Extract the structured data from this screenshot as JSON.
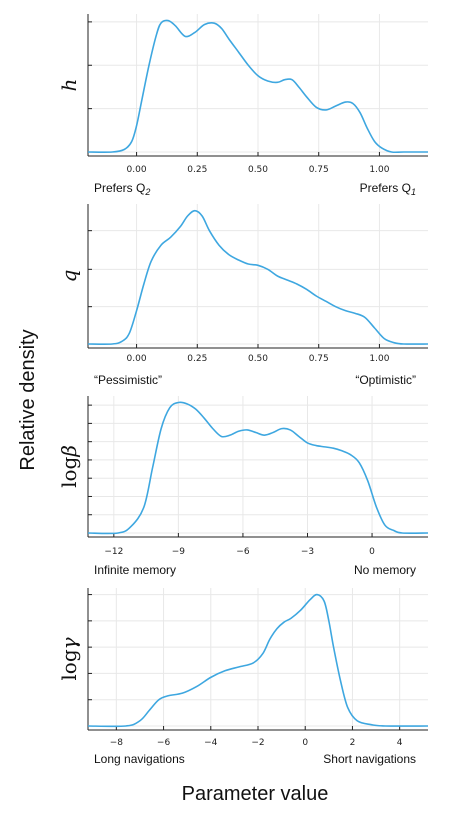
{
  "figure": {
    "ylabel": "Relative density",
    "xlabel": "Parameter value",
    "line_color": "#3ea7e0",
    "axis_color": "#222222",
    "grid_color": "#e8e8e8"
  },
  "chart_data": [
    {
      "type": "line",
      "ylabel_main": "h",
      "ylabel_prefix": "",
      "xlim": [
        -0.2,
        1.2
      ],
      "xticks": [
        0.0,
        0.25,
        0.5,
        0.75,
        1.0
      ],
      "xtick_labels": [
        "0.00",
        "0.25",
        "0.50",
        "0.75",
        "1.00"
      ],
      "ylim": [
        0,
        1.05
      ],
      "yticks": [
        0.0,
        0.33,
        0.66,
        0.99
      ],
      "left_label": "Prefers Q",
      "left_sub": "2",
      "right_label": "Prefers Q",
      "right_sub": "1",
      "grid": true,
      "series": [
        {
          "x": [
            -0.2,
            -0.1,
            -0.05,
            -0.02,
            0.0,
            0.02,
            0.05,
            0.08,
            0.1,
            0.13,
            0.16,
            0.2,
            0.24,
            0.28,
            0.32,
            0.35,
            0.38,
            0.42,
            0.46,
            0.5,
            0.54,
            0.58,
            0.61,
            0.64,
            0.67,
            0.7,
            0.74,
            0.78,
            0.82,
            0.86,
            0.89,
            0.92,
            0.95,
            0.98,
            1.01,
            1.05,
            1.1,
            1.2
          ],
          "y": [
            0.0,
            0.0,
            0.02,
            0.08,
            0.2,
            0.38,
            0.65,
            0.88,
            0.98,
            1.0,
            0.96,
            0.88,
            0.91,
            0.97,
            0.98,
            0.94,
            0.86,
            0.76,
            0.66,
            0.58,
            0.54,
            0.53,
            0.55,
            0.55,
            0.49,
            0.42,
            0.34,
            0.32,
            0.35,
            0.38,
            0.37,
            0.3,
            0.18,
            0.08,
            0.03,
            0.0,
            0.0,
            0.0
          ]
        }
      ]
    },
    {
      "type": "line",
      "ylabel_main": "q",
      "ylabel_prefix": "",
      "xlim": [
        -0.2,
        1.2
      ],
      "xticks": [
        0.0,
        0.25,
        0.5,
        0.75,
        1.0
      ],
      "xtick_labels": [
        "0.00",
        "0.25",
        "0.50",
        "0.75",
        "1.00"
      ],
      "ylim": [
        0,
        1.05
      ],
      "yticks": [
        0.0,
        0.28,
        0.56,
        0.85
      ],
      "left_label": "“Pessimistic”",
      "left_sub": "",
      "right_label": "“Optimistic”",
      "right_sub": "",
      "grid": true,
      "series": [
        {
          "x": [
            -0.2,
            -0.1,
            -0.06,
            -0.03,
            0.0,
            0.03,
            0.06,
            0.1,
            0.14,
            0.18,
            0.21,
            0.24,
            0.27,
            0.3,
            0.34,
            0.38,
            0.42,
            0.46,
            0.5,
            0.54,
            0.58,
            0.62,
            0.66,
            0.7,
            0.74,
            0.78,
            0.82,
            0.86,
            0.9,
            0.94,
            0.98,
            1.02,
            1.06,
            1.1,
            1.2
          ],
          "y": [
            0.0,
            0.0,
            0.02,
            0.08,
            0.25,
            0.45,
            0.62,
            0.74,
            0.8,
            0.88,
            0.96,
            1.0,
            0.96,
            0.85,
            0.74,
            0.67,
            0.63,
            0.6,
            0.59,
            0.56,
            0.51,
            0.48,
            0.45,
            0.41,
            0.36,
            0.32,
            0.28,
            0.25,
            0.23,
            0.2,
            0.12,
            0.04,
            0.01,
            0.0,
            0.0
          ]
        }
      ]
    },
    {
      "type": "line",
      "ylabel_main": "β",
      "ylabel_prefix": "log",
      "xlim": [
        -13.2,
        2.6
      ],
      "xticks": [
        -12,
        -9,
        -6,
        -3,
        0
      ],
      "xtick_labels": [
        "−12",
        "−9",
        "−6",
        "−3",
        "0"
      ],
      "ylim": [
        0,
        1.05
      ],
      "yticks": [
        0.0,
        0.14,
        0.28,
        0.42,
        0.56,
        0.7,
        0.84,
        0.98
      ],
      "left_label": "Infinite memory",
      "left_sub": "",
      "right_label": "No memory",
      "right_sub": "",
      "grid": true,
      "series": [
        {
          "x": [
            -13.2,
            -11.8,
            -11.2,
            -10.6,
            -10.2,
            -9.8,
            -9.4,
            -9.0,
            -8.6,
            -8.2,
            -7.8,
            -7.4,
            -7.0,
            -6.6,
            -6.2,
            -5.8,
            -5.4,
            -5.0,
            -4.6,
            -4.2,
            -3.8,
            -3.4,
            -3.0,
            -2.6,
            -2.2,
            -1.8,
            -1.4,
            -1.0,
            -0.6,
            -0.2,
            0.2,
            0.6,
            1.0,
            1.4,
            2.6
          ],
          "y": [
            0.0,
            0.0,
            0.05,
            0.2,
            0.5,
            0.8,
            0.96,
            1.0,
            0.99,
            0.95,
            0.88,
            0.8,
            0.74,
            0.75,
            0.78,
            0.79,
            0.77,
            0.75,
            0.77,
            0.8,
            0.79,
            0.74,
            0.69,
            0.67,
            0.66,
            0.65,
            0.63,
            0.6,
            0.54,
            0.4,
            0.2,
            0.06,
            0.02,
            0.0,
            0.0
          ]
        }
      ]
    },
    {
      "type": "line",
      "ylabel_main": "γ",
      "ylabel_prefix": "log",
      "xlim": [
        -9.2,
        5.2
      ],
      "xticks": [
        -8,
        -6,
        -4,
        -2,
        0,
        2,
        4
      ],
      "xtick_labels": [
        "−8",
        "−6",
        "−4",
        "−2",
        "0",
        "2",
        "4"
      ],
      "ylim": [
        0,
        1.05
      ],
      "yticks": [
        0.0,
        0.2,
        0.4,
        0.6,
        0.8,
        1.0
      ],
      "left_label": "Long navigations",
      "left_sub": "",
      "right_label": "Short navigations",
      "right_sub": "",
      "grid": true,
      "series": [
        {
          "x": [
            -9.2,
            -7.6,
            -7.0,
            -6.6,
            -6.2,
            -5.8,
            -5.2,
            -4.6,
            -4.0,
            -3.4,
            -2.8,
            -2.2,
            -1.8,
            -1.5,
            -1.2,
            -0.9,
            -0.6,
            -0.2,
            0.2,
            0.5,
            0.8,
            1.0,
            1.2,
            1.5,
            1.8,
            2.2,
            2.8,
            3.4,
            5.2
          ],
          "y": [
            0.0,
            0.0,
            0.04,
            0.12,
            0.2,
            0.23,
            0.25,
            0.3,
            0.37,
            0.42,
            0.45,
            0.48,
            0.55,
            0.66,
            0.74,
            0.79,
            0.82,
            0.88,
            0.96,
            1.0,
            0.95,
            0.8,
            0.6,
            0.34,
            0.14,
            0.04,
            0.01,
            0.0,
            0.0
          ]
        }
      ]
    }
  ]
}
